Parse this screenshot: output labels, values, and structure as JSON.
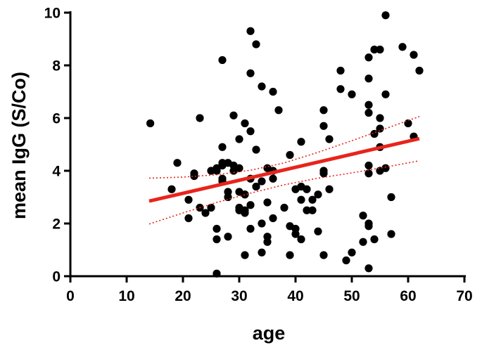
{
  "chart_data": {
    "type": "scatter",
    "xlabel": "age",
    "ylabel": "mean IgG (S/Co)",
    "xlim": [
      0,
      70
    ],
    "ylim": [
      0,
      10
    ],
    "xticks": [
      0,
      10,
      20,
      30,
      40,
      50,
      60,
      70
    ],
    "yticks": [
      0,
      2,
      4,
      6,
      8,
      10
    ],
    "grid": false,
    "legend": "none",
    "point_color": "#000000",
    "fit_color": "#e8241c",
    "points": [
      [
        14.2,
        5.8
      ],
      [
        18,
        3.3
      ],
      [
        19,
        4.3
      ],
      [
        21,
        2.9
      ],
      [
        21,
        2.2
      ],
      [
        22,
        3.8
      ],
      [
        22,
        3.9
      ],
      [
        23,
        6
      ],
      [
        23,
        2.6
      ],
      [
        24,
        2.4
      ],
      [
        25,
        4
      ],
      [
        25,
        2.6
      ],
      [
        26,
        4.1
      ],
      [
        26,
        4
      ],
      [
        26,
        1.8
      ],
      [
        26,
        1.4
      ],
      [
        26,
        0.1
      ],
      [
        27,
        4.3
      ],
      [
        27,
        4.2
      ],
      [
        27,
        3.7
      ],
      [
        27,
        3.6
      ],
      [
        27,
        4.9
      ],
      [
        27,
        8.2
      ],
      [
        28,
        4.3
      ],
      [
        28,
        3.2
      ],
      [
        28,
        3
      ],
      [
        28,
        1.5
      ],
      [
        29,
        4.2
      ],
      [
        29,
        6.1
      ],
      [
        29,
        4
      ],
      [
        30,
        4.1
      ],
      [
        30,
        5.2
      ],
      [
        30,
        3.2
      ],
      [
        30,
        2.6
      ],
      [
        30,
        2.5
      ],
      [
        31,
        5.8
      ],
      [
        31,
        3.1
      ],
      [
        31,
        3.1
      ],
      [
        31,
        2.5
      ],
      [
        31,
        2.4
      ],
      [
        31,
        0.8
      ],
      [
        32,
        9.3
      ],
      [
        32,
        7.7
      ],
      [
        32,
        5.5
      ],
      [
        32,
        3.7
      ],
      [
        32,
        2.7
      ],
      [
        32,
        1.8
      ],
      [
        33,
        8.8
      ],
      [
        33,
        4.8
      ],
      [
        33,
        3.4
      ],
      [
        34,
        7.2
      ],
      [
        34,
        3.6
      ],
      [
        34,
        2
      ],
      [
        34,
        0.9
      ],
      [
        35,
        4.1
      ],
      [
        35,
        2.8
      ],
      [
        35,
        1.5
      ],
      [
        35,
        1.3
      ],
      [
        36,
        7
      ],
      [
        36,
        4
      ],
      [
        36,
        3.7
      ],
      [
        36,
        2.2
      ],
      [
        37,
        6.3
      ],
      [
        38,
        2.6
      ],
      [
        39,
        4.6
      ],
      [
        39,
        1.9
      ],
      [
        39,
        0.8
      ],
      [
        40,
        3.3
      ],
      [
        40,
        1.8
      ],
      [
        40,
        1.6
      ],
      [
        41,
        5.1
      ],
      [
        41,
        3.4
      ],
      [
        41,
        2.9
      ],
      [
        41,
        1.4
      ],
      [
        42,
        3.3
      ],
      [
        42,
        2.5
      ],
      [
        43,
        2.9
      ],
      [
        43,
        2.5
      ],
      [
        44,
        3.1
      ],
      [
        44,
        1.7
      ],
      [
        45,
        6.3
      ],
      [
        45,
        5.7
      ],
      [
        45,
        4
      ],
      [
        45,
        3.9
      ],
      [
        45,
        0.8
      ],
      [
        46,
        5.2
      ],
      [
        46,
        3.3
      ],
      [
        48,
        7.8
      ],
      [
        48,
        7.1
      ],
      [
        49,
        0.6
      ],
      [
        50,
        6.9
      ],
      [
        50,
        0.9
      ],
      [
        52,
        2.3
      ],
      [
        52,
        1.3
      ],
      [
        53,
        8.3
      ],
      [
        53,
        7.5
      ],
      [
        53,
        6.5
      ],
      [
        53,
        6.2
      ],
      [
        53,
        4.2
      ],
      [
        53,
        3.9
      ],
      [
        53,
        2
      ],
      [
        53,
        1.9
      ],
      [
        53,
        0.3
      ],
      [
        54,
        8.6
      ],
      [
        54,
        5.4
      ],
      [
        54,
        1.4
      ],
      [
        55,
        8.6
      ],
      [
        55,
        6
      ],
      [
        55,
        5.6
      ],
      [
        55,
        4.9
      ],
      [
        55,
        4
      ],
      [
        56,
        9.9
      ],
      [
        56,
        6.9
      ],
      [
        56,
        4.1
      ],
      [
        57,
        3
      ],
      [
        57,
        1.6
      ],
      [
        59,
        8.7
      ],
      [
        60,
        5.8
      ],
      [
        61,
        8.4
      ],
      [
        61,
        5.3
      ],
      [
        62,
        7.8
      ]
    ],
    "fit": {
      "x": [
        14,
        62
      ],
      "y": [
        2.85,
        5.22
      ]
    },
    "confidence_band": {
      "x": [
        14,
        20,
        26,
        32,
        38,
        44,
        50,
        56,
        62
      ],
      "upper": [
        3.72,
        3.76,
        3.85,
        4.02,
        4.3,
        4.7,
        5.14,
        5.6,
        6.06
      ],
      "lower": [
        1.98,
        2.4,
        2.8,
        3.15,
        3.47,
        3.72,
        3.92,
        4.14,
        4.38
      ]
    }
  }
}
